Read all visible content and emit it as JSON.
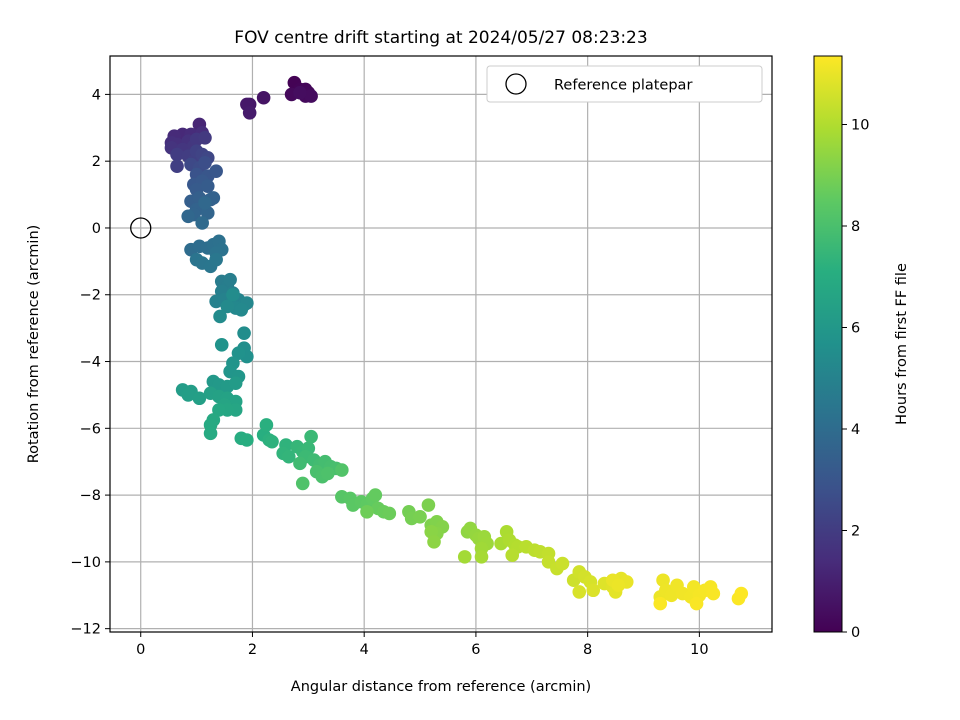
{
  "chart_data": {
    "type": "scatter",
    "title": "FOV centre drift starting at 2024/05/27 08:23:23",
    "xlabel": "Angular distance from reference (arcmin)",
    "ylabel": "Rotation from reference (arcmin)",
    "xlim": [
      -0.55,
      11.3
    ],
    "ylim": [
      -12.1,
      5.15
    ],
    "xticks": [
      0,
      2,
      4,
      6,
      8,
      10
    ],
    "yticks": [
      -12,
      -10,
      -8,
      -6,
      -4,
      -2,
      0,
      2,
      4
    ],
    "grid": true,
    "legend": {
      "position": "top-right",
      "entries": [
        "Reference platepar"
      ]
    },
    "reference": {
      "x": 0,
      "y": 0,
      "label": "Reference platepar"
    },
    "colorbar": {
      "label": "Hours from first FF file",
      "colormap": "viridis",
      "range": [
        0,
        11.35
      ],
      "ticks": [
        0,
        2,
        4,
        6,
        8,
        10
      ]
    },
    "series": [
      {
        "color_scale": "time",
        "points": [
          [
            2.75,
            4.35,
            0.05
          ],
          [
            2.85,
            4.15,
            0.1
          ],
          [
            2.95,
            4.15,
            0.15
          ],
          [
            3.0,
            4.05,
            0.2
          ],
          [
            2.7,
            4.0,
            0.25
          ],
          [
            2.95,
            3.95,
            0.3
          ],
          [
            3.05,
            3.95,
            0.35
          ],
          [
            2.85,
            4.05,
            0.4
          ],
          [
            2.2,
            3.9,
            0.6
          ],
          [
            1.95,
            3.7,
            0.7
          ],
          [
            1.9,
            3.7,
            0.75
          ],
          [
            1.95,
            3.45,
            0.85
          ],
          [
            1.05,
            3.1,
            1.2
          ],
          [
            0.75,
            2.8,
            1.3
          ],
          [
            0.6,
            2.75,
            1.35
          ],
          [
            0.9,
            2.8,
            1.4
          ],
          [
            1.1,
            2.85,
            1.45
          ],
          [
            0.55,
            2.55,
            1.5
          ],
          [
            0.65,
            2.5,
            1.55
          ],
          [
            0.85,
            2.6,
            1.6
          ],
          [
            0.55,
            2.4,
            1.7
          ],
          [
            0.75,
            2.35,
            1.75
          ],
          [
            0.95,
            2.45,
            1.8
          ],
          [
            1.0,
            2.65,
            1.85
          ],
          [
            1.15,
            2.7,
            1.9
          ],
          [
            0.65,
            2.2,
            2.0
          ],
          [
            0.85,
            2.15,
            2.05
          ],
          [
            0.65,
            1.85,
            2.1
          ],
          [
            0.95,
            2.0,
            2.15
          ],
          [
            1.0,
            2.3,
            2.2
          ],
          [
            1.1,
            2.2,
            2.3
          ],
          [
            1.2,
            2.1,
            2.4
          ],
          [
            0.9,
            1.9,
            2.5
          ],
          [
            1.05,
            1.8,
            2.6
          ],
          [
            1.15,
            1.95,
            2.7
          ],
          [
            1.0,
            1.6,
            2.9
          ],
          [
            1.2,
            1.55,
            3.0
          ],
          [
            1.35,
            1.7,
            3.05
          ],
          [
            0.95,
            1.3,
            3.1
          ],
          [
            1.1,
            1.4,
            3.15
          ],
          [
            1.0,
            1.15,
            3.25
          ],
          [
            1.2,
            1.25,
            3.3
          ],
          [
            0.9,
            0.8,
            3.4
          ],
          [
            1.05,
            0.9,
            3.45
          ],
          [
            1.25,
            0.85,
            3.5
          ],
          [
            1.3,
            0.9,
            3.55
          ],
          [
            1.0,
            0.55,
            3.6
          ],
          [
            0.95,
            0.4,
            3.65
          ],
          [
            1.2,
            0.45,
            3.7
          ],
          [
            0.85,
            0.35,
            3.75
          ],
          [
            1.15,
            0.75,
            3.8
          ],
          [
            1.1,
            0.15,
            3.9
          ],
          [
            0.9,
            -0.65,
            4.0
          ],
          [
            1.05,
            -0.55,
            4.05
          ],
          [
            1.2,
            -0.6,
            4.1
          ],
          [
            1.3,
            -0.5,
            4.15
          ],
          [
            1.4,
            -0.4,
            4.2
          ],
          [
            1.45,
            -0.65,
            4.25
          ],
          [
            1.35,
            -0.75,
            4.3
          ],
          [
            1.0,
            -0.95,
            4.35
          ],
          [
            1.1,
            -1.05,
            4.4
          ],
          [
            1.25,
            -1.15,
            4.45
          ],
          [
            1.35,
            -0.95,
            4.5
          ],
          [
            1.45,
            -1.6,
            4.7
          ],
          [
            1.55,
            -1.75,
            4.75
          ],
          [
            1.6,
            -1.55,
            4.8
          ],
          [
            1.45,
            -1.9,
            4.85
          ],
          [
            1.65,
            -1.95,
            4.9
          ],
          [
            1.35,
            -2.2,
            4.95
          ],
          [
            1.5,
            -2.15,
            5.0
          ],
          [
            1.6,
            -2.3,
            5.05
          ],
          [
            1.75,
            -2.15,
            5.1
          ],
          [
            1.85,
            -2.3,
            5.15
          ],
          [
            1.9,
            -2.25,
            5.2
          ],
          [
            1.7,
            -2.4,
            5.25
          ],
          [
            1.8,
            -2.45,
            5.3
          ],
          [
            1.55,
            -2.35,
            5.35
          ],
          [
            1.42,
            -2.65,
            5.4
          ],
          [
            1.65,
            -2.0,
            5.45
          ],
          [
            1.85,
            -3.15,
            5.5
          ],
          [
            1.85,
            -3.6,
            5.6
          ],
          [
            1.9,
            -3.85,
            5.65
          ],
          [
            1.75,
            -3.75,
            5.7
          ],
          [
            1.45,
            -3.5,
            5.75
          ],
          [
            1.65,
            -4.05,
            5.8
          ],
          [
            1.6,
            -4.3,
            5.85
          ],
          [
            1.75,
            -4.45,
            5.9
          ],
          [
            1.3,
            -4.6,
            6.0
          ],
          [
            1.4,
            -4.7,
            6.05
          ],
          [
            1.55,
            -4.75,
            6.1
          ],
          [
            1.7,
            -4.65,
            6.15
          ],
          [
            0.75,
            -4.85,
            6.2
          ],
          [
            0.9,
            -4.9,
            6.25
          ],
          [
            0.85,
            -5.0,
            6.3
          ],
          [
            1.05,
            -5.1,
            6.35
          ],
          [
            1.25,
            -4.95,
            6.4
          ],
          [
            1.4,
            -5.05,
            6.45
          ],
          [
            1.55,
            -5.1,
            6.5
          ],
          [
            1.7,
            -5.2,
            6.55
          ],
          [
            1.5,
            -5.3,
            6.6
          ],
          [
            1.7,
            -5.45,
            6.65
          ],
          [
            1.55,
            -5.45,
            6.7
          ],
          [
            1.4,
            -5.45,
            6.75
          ],
          [
            1.3,
            -5.75,
            6.8
          ],
          [
            1.25,
            -5.9,
            6.85
          ],
          [
            1.25,
            -6.15,
            6.9
          ],
          [
            1.8,
            -6.3,
            7.0
          ],
          [
            1.9,
            -6.35,
            7.05
          ],
          [
            2.2,
            -6.2,
            7.1
          ],
          [
            2.25,
            -5.9,
            7.15
          ],
          [
            2.3,
            -6.35,
            7.2
          ],
          [
            2.35,
            -6.4,
            7.25
          ],
          [
            2.6,
            -6.5,
            7.3
          ],
          [
            2.55,
            -6.75,
            7.35
          ],
          [
            2.65,
            -6.85,
            7.4
          ],
          [
            2.8,
            -6.55,
            7.45
          ],
          [
            2.9,
            -6.7,
            7.5
          ],
          [
            3.0,
            -6.6,
            7.55
          ],
          [
            3.05,
            -6.25,
            7.6
          ],
          [
            2.95,
            -6.85,
            7.65
          ],
          [
            3.1,
            -6.95,
            7.7
          ],
          [
            2.85,
            -7.05,
            7.75
          ],
          [
            3.2,
            -7.1,
            7.8
          ],
          [
            3.3,
            -7.0,
            7.85
          ],
          [
            3.4,
            -7.15,
            7.9
          ],
          [
            3.5,
            -7.2,
            7.95
          ],
          [
            3.15,
            -7.3,
            8.0
          ],
          [
            3.25,
            -7.45,
            8.05
          ],
          [
            3.35,
            -7.35,
            8.1
          ],
          [
            2.9,
            -7.65,
            8.15
          ],
          [
            3.6,
            -7.25,
            8.2
          ],
          [
            3.6,
            -8.05,
            8.3
          ],
          [
            3.75,
            -8.1,
            8.35
          ],
          [
            3.8,
            -8.3,
            8.4
          ],
          [
            3.95,
            -8.2,
            8.45
          ],
          [
            4.05,
            -8.3,
            8.5
          ],
          [
            4.15,
            -8.1,
            8.55
          ],
          [
            4.2,
            -8.0,
            8.6
          ],
          [
            4.25,
            -8.4,
            8.65
          ],
          [
            4.35,
            -8.5,
            8.7
          ],
          [
            4.45,
            -8.55,
            8.75
          ],
          [
            4.05,
            -8.5,
            8.8
          ],
          [
            4.8,
            -8.5,
            8.9
          ],
          [
            4.85,
            -8.7,
            8.95
          ],
          [
            5.0,
            -8.65,
            9.0
          ],
          [
            5.15,
            -8.3,
            9.05
          ],
          [
            5.2,
            -8.9,
            9.1
          ],
          [
            5.3,
            -8.8,
            9.15
          ],
          [
            5.4,
            -8.95,
            9.2
          ],
          [
            5.3,
            -9.15,
            9.25
          ],
          [
            5.2,
            -9.1,
            9.3
          ],
          [
            5.25,
            -9.4,
            9.35
          ],
          [
            5.85,
            -9.1,
            9.4
          ],
          [
            5.9,
            -9.0,
            9.45
          ],
          [
            6.0,
            -9.2,
            9.5
          ],
          [
            6.05,
            -9.3,
            9.55
          ],
          [
            6.15,
            -9.25,
            9.6
          ],
          [
            6.2,
            -9.45,
            9.65
          ],
          [
            6.1,
            -9.6,
            9.7
          ],
          [
            5.8,
            -9.85,
            9.75
          ],
          [
            6.1,
            -9.85,
            9.8
          ],
          [
            6.45,
            -9.45,
            9.85
          ],
          [
            6.55,
            -9.1,
            9.9
          ],
          [
            6.6,
            -9.35,
            9.95
          ],
          [
            6.7,
            -9.5,
            10.0
          ],
          [
            6.75,
            -9.55,
            10.05
          ],
          [
            6.65,
            -9.8,
            10.1
          ],
          [
            6.9,
            -9.55,
            10.15
          ],
          [
            7.05,
            -9.65,
            10.2
          ],
          [
            7.15,
            -9.7,
            10.25
          ],
          [
            7.3,
            -9.75,
            10.3
          ],
          [
            7.3,
            -10.0,
            10.35
          ],
          [
            7.45,
            -10.2,
            10.4
          ],
          [
            7.55,
            -10.05,
            10.45
          ],
          [
            7.75,
            -10.55,
            10.5
          ],
          [
            7.85,
            -10.3,
            10.55
          ],
          [
            7.95,
            -10.45,
            10.6
          ],
          [
            8.05,
            -10.6,
            10.65
          ],
          [
            7.85,
            -10.9,
            10.7
          ],
          [
            8.1,
            -10.85,
            10.75
          ],
          [
            8.3,
            -10.65,
            10.8
          ],
          [
            8.45,
            -10.75,
            10.85
          ],
          [
            8.5,
            -10.9,
            10.9
          ],
          [
            8.6,
            -10.5,
            10.95
          ],
          [
            8.7,
            -10.6,
            11.0
          ],
          [
            8.45,
            -10.55,
            11.02
          ],
          [
            8.55,
            -10.7,
            11.04
          ],
          [
            9.3,
            -11.05,
            11.05
          ],
          [
            9.35,
            -10.55,
            11.07
          ],
          [
            9.4,
            -10.85,
            11.09
          ],
          [
            9.5,
            -11.0,
            11.1
          ],
          [
            9.6,
            -10.7,
            11.12
          ],
          [
            9.7,
            -10.95,
            11.14
          ],
          [
            9.85,
            -11.05,
            11.16
          ],
          [
            9.9,
            -10.75,
            11.18
          ],
          [
            10.0,
            -11.0,
            11.2
          ],
          [
            10.1,
            -10.85,
            11.22
          ],
          [
            10.2,
            -10.75,
            11.24
          ],
          [
            10.25,
            -10.95,
            11.26
          ],
          [
            9.95,
            -11.25,
            11.28
          ],
          [
            9.3,
            -11.25,
            11.3
          ],
          [
            10.7,
            -11.1,
            11.32
          ],
          [
            10.75,
            -10.95,
            11.34
          ]
        ]
      }
    ]
  }
}
